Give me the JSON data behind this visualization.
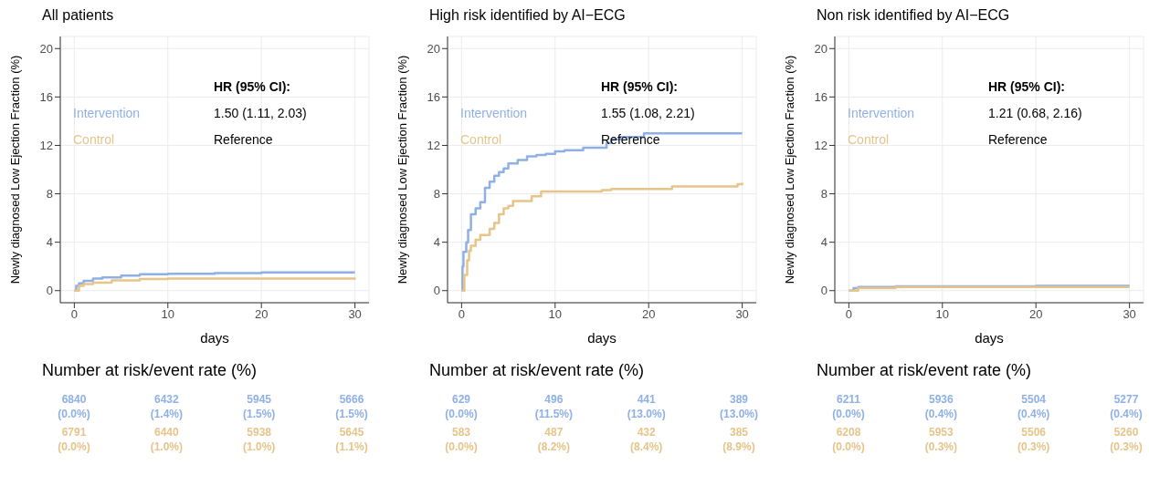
{
  "chart_data": [
    {
      "type": "step",
      "title": "All patients",
      "xlabel": "days",
      "ylabel": "Newly diagnosed Low Ejection Fraction (%)",
      "xlim": [
        -1.5,
        31.5
      ],
      "ylim": [
        -1,
        21
      ],
      "xticks": [
        0,
        10,
        20,
        30
      ],
      "yticks": [
        0,
        4,
        8,
        12,
        16,
        20
      ],
      "grid": true,
      "legend": "top left",
      "annotations": [
        "HR (95% CI):",
        "1.50 (1.11, 2.03)",
        "Reference",
        "Number at risk/event rate (%)",
        "6840 (0.0%)",
        "6432 (1.4%)",
        "5945 (1.5%)",
        "5666 (1.5%)",
        "6791 (0.0%)",
        "6440 (1.0%)",
        "5938 (1.0%)",
        "5645 (1.1%)"
      ],
      "series": [
        {
          "name": "Intervention",
          "color": "#8fb0e6",
          "x": [
            0,
            0.2,
            0.5,
            1,
            2,
            3,
            5,
            7,
            10,
            15,
            20,
            30
          ],
          "values": [
            0,
            0.4,
            0.6,
            0.8,
            1.0,
            1.1,
            1.25,
            1.35,
            1.4,
            1.45,
            1.5,
            1.5
          ]
        },
        {
          "name": "Control",
          "color": "#e6c48a",
          "x": [
            0,
            0.5,
            1,
            2,
            4,
            7,
            10,
            20,
            30
          ],
          "values": [
            0,
            0.4,
            0.55,
            0.65,
            0.85,
            0.95,
            1.0,
            1.0,
            1.05
          ]
        }
      ]
    },
    {
      "type": "step",
      "title": "High risk identified by AI−ECG",
      "xlabel": "days",
      "ylabel": "Newly diagnosed Low Ejection Fraction (%)",
      "xlim": [
        -1.5,
        31.5
      ],
      "ylim": [
        -1,
        21
      ],
      "xticks": [
        0,
        10,
        20,
        30
      ],
      "yticks": [
        0,
        4,
        8,
        12,
        16,
        20
      ],
      "grid": true,
      "legend": "top left",
      "annotations": [
        "HR (95% CI):",
        "1.55 (1.08, 2.21)",
        "Reference",
        "Number at risk/event rate (%)",
        "629 (0.0%)",
        "496 (11.5%)",
        "441 (13.0%)",
        "389 (13.0%)",
        "583 (0.0%)",
        "487 (8.2%)",
        "432 (8.4%)",
        "385 (8.9%)"
      ],
      "series": [
        {
          "name": "Intervention",
          "color": "#8fb0e6",
          "x": [
            0,
            0.1,
            0.2,
            0.5,
            0.7,
            1,
            1.5,
            2,
            2.5,
            3,
            3.5,
            4,
            4.5,
            5,
            6,
            7,
            8,
            9,
            10,
            11,
            13,
            15.5,
            16,
            17,
            19.5,
            30
          ],
          "values": [
            0,
            2,
            3.2,
            4,
            5,
            6.3,
            6.8,
            7.3,
            8.5,
            9,
            9.5,
            9.8,
            10.1,
            10.5,
            10.8,
            11.1,
            11.2,
            11.3,
            11.5,
            11.6,
            11.8,
            12.2,
            12.5,
            12.7,
            13,
            13
          ]
        },
        {
          "name": "Control",
          "color": "#e6c48a",
          "x": [
            0,
            0.3,
            0.6,
            0.8,
            1,
            1.5,
            2,
            3,
            3.5,
            4,
            4.5,
            5,
            5.5,
            7.5,
            8.5,
            15,
            16,
            22.5,
            29.5,
            30
          ],
          "values": [
            0,
            1.3,
            2.5,
            3.3,
            3.7,
            4.2,
            4.6,
            5.1,
            5.6,
            6.3,
            6.8,
            7,
            7.4,
            7.8,
            8.2,
            8.3,
            8.4,
            8.6,
            8.8,
            8.9
          ]
        }
      ]
    },
    {
      "type": "step",
      "title": "Non risk identified by AI−ECG",
      "xlabel": "days",
      "ylabel": "Newly diagnosed Low Ejection Fraction (%)",
      "xlim": [
        -1.5,
        31.5
      ],
      "ylim": [
        -1,
        21
      ],
      "xticks": [
        0,
        10,
        20,
        30
      ],
      "yticks": [
        0,
        4,
        8,
        12,
        16,
        20
      ],
      "grid": true,
      "legend": "top left",
      "annotations": [
        "HR (95% CI):",
        "1.21 (0.68, 2.16)",
        "Reference",
        "Number at risk/event rate (%)",
        "6211 (0.0%)",
        "5936 (0.4%)",
        "5504 (0.4%)",
        "5277 (0.4%)",
        "6208 (0.0%)",
        "5953 (0.3%)",
        "5506 (0.3%)",
        "5260 (0.3%)"
      ],
      "series": [
        {
          "name": "Intervention",
          "color": "#8fb0e6",
          "x": [
            0,
            0.5,
            1,
            5,
            20,
            30
          ],
          "values": [
            0,
            0.2,
            0.3,
            0.35,
            0.4,
            0.4
          ]
        },
        {
          "name": "Control",
          "color": "#e6c48a",
          "x": [
            0,
            1,
            5,
            30
          ],
          "values": [
            0,
            0.2,
            0.3,
            0.3
          ]
        }
      ]
    }
  ]
}
